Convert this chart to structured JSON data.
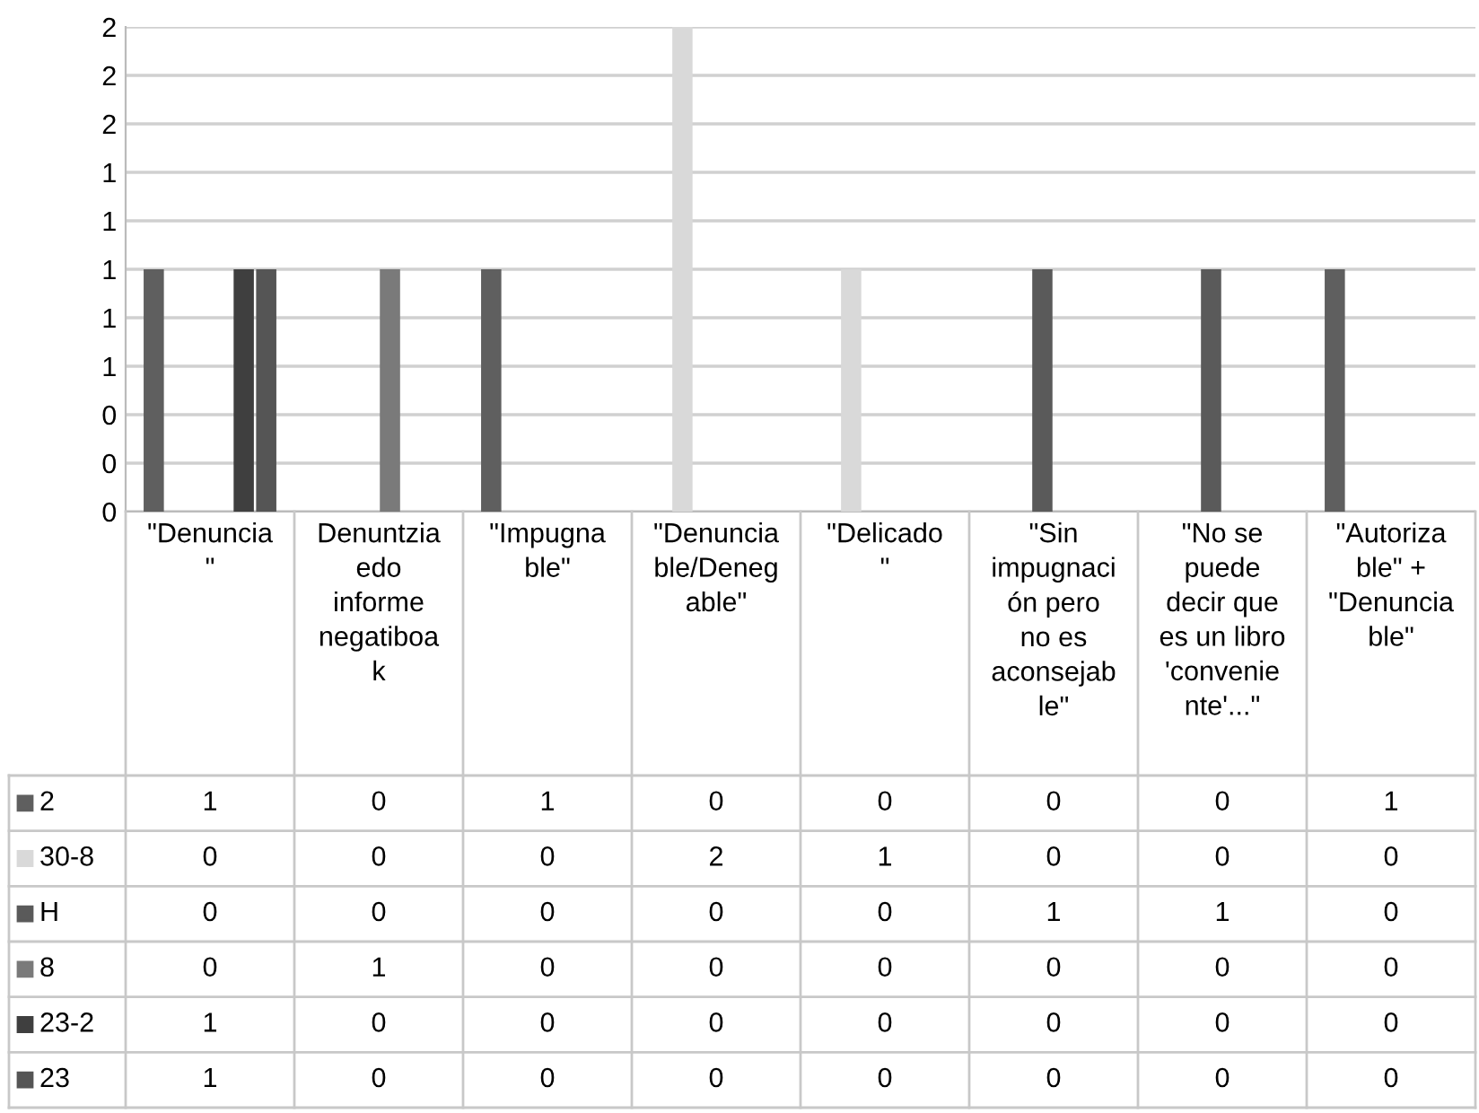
{
  "chart_data": {
    "type": "bar",
    "categories": [
      "\"Denuncia\n\"",
      "Denuntzia\nedo\ninforme\nnegatiboa\nk",
      "\"Impugna\nble\"",
      "\"Denuncia\nble/Deneg\nable\"",
      "\"Delicado\n\"",
      "\"Sin\nimpugnaci\nón pero\nno es\naconsejab\nle\"",
      "\"No se\npuede\ndecir que\nes un libro\n'convenie\nnte'...\"",
      "\"Autoriza\nble\" +\n\"Denuncia\nble\""
    ],
    "series": [
      {
        "name": "2",
        "color": "#5f5f5f",
        "values": [
          1,
          0,
          1,
          0,
          0,
          0,
          0,
          1
        ]
      },
      {
        "name": "30-8",
        "color": "#d9d9d9",
        "values": [
          0,
          0,
          0,
          2,
          1,
          0,
          0,
          0
        ]
      },
      {
        "name": "H",
        "color": "#5a5a5a",
        "values": [
          0,
          0,
          0,
          0,
          0,
          1,
          1,
          0
        ]
      },
      {
        "name": "8",
        "color": "#7a7a7a",
        "values": [
          0,
          1,
          0,
          0,
          0,
          0,
          0,
          0
        ]
      },
      {
        "name": "23-2",
        "color": "#3f3f3f",
        "values": [
          1,
          0,
          0,
          0,
          0,
          0,
          0,
          0
        ]
      },
      {
        "name": "23",
        "color": "#555555",
        "values": [
          1,
          0,
          0,
          0,
          0,
          0,
          0,
          0
        ]
      }
    ],
    "ylim": [
      0,
      2
    ],
    "yticks": [
      {
        "value": 0,
        "label": "0"
      },
      {
        "value": 0.2,
        "label": "0"
      },
      {
        "value": 0.4,
        "label": "0"
      },
      {
        "value": 0.6,
        "label": "1"
      },
      {
        "value": 0.8,
        "label": "1"
      },
      {
        "value": 1.0,
        "label": "1"
      },
      {
        "value": 1.2,
        "label": "1"
      },
      {
        "value": 1.4,
        "label": "1"
      },
      {
        "value": 1.6,
        "label": "2"
      },
      {
        "value": 1.8,
        "label": "2"
      },
      {
        "value": 2.0,
        "label": "2"
      }
    ],
    "grid": "y",
    "data_labels": true,
    "legend": "left"
  }
}
